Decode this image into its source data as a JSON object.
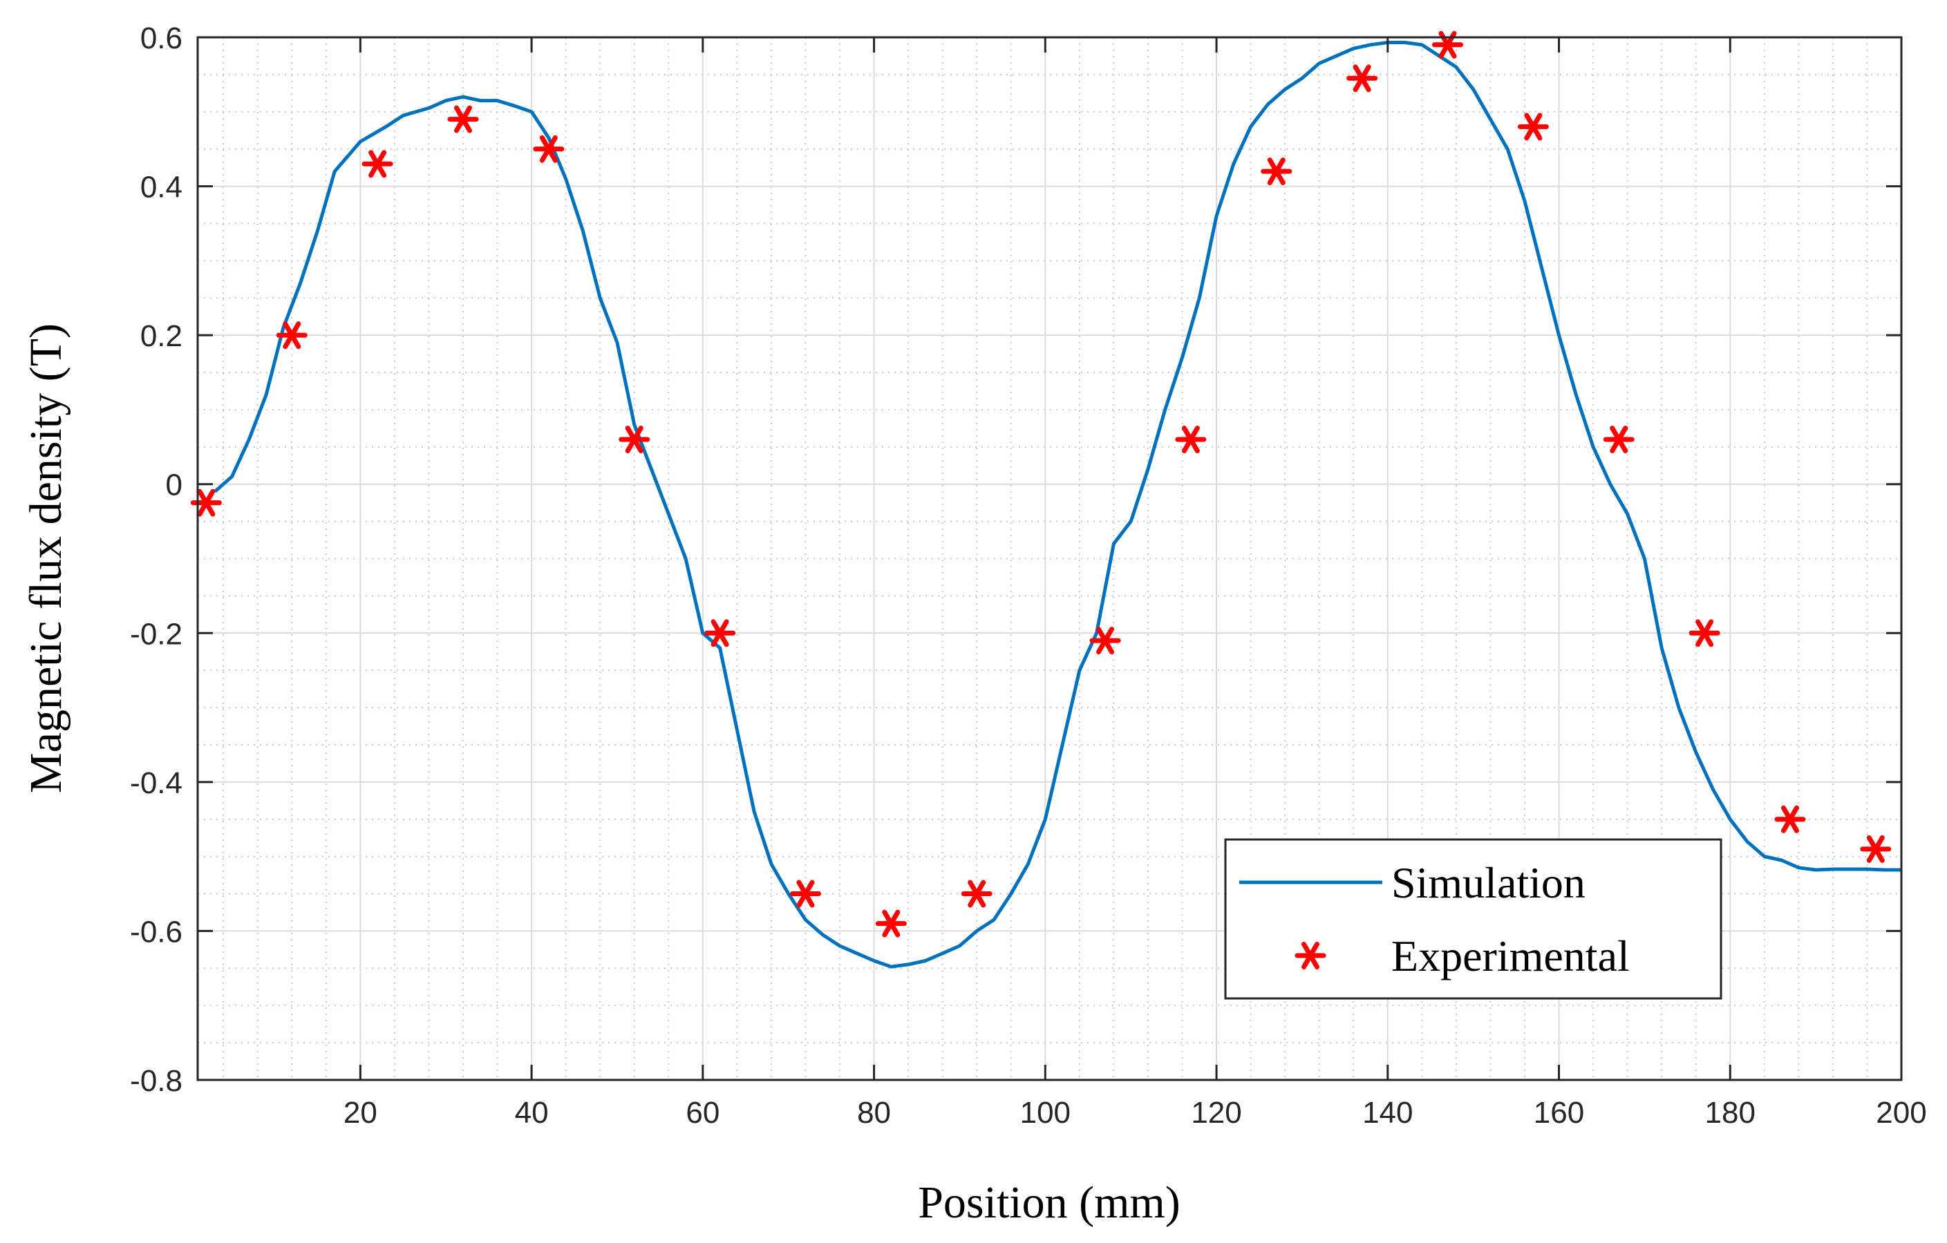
{
  "chart_data": {
    "type": "line",
    "title": "",
    "xlabel": "Position (mm)",
    "ylabel": "Magnetic flux density (T)",
    "xlim": [
      1,
      200
    ],
    "ylim": [
      -0.8,
      0.6
    ],
    "xticks": [
      20,
      40,
      60,
      80,
      100,
      120,
      140,
      160,
      180,
      200
    ],
    "xtick_labels": [
      "20",
      "40",
      "60",
      "80",
      "100",
      "120",
      "140",
      "160",
      "180",
      "200"
    ],
    "yticks": [
      -0.8,
      -0.6,
      -0.4,
      -0.2,
      0,
      0.2,
      0.4,
      0.6
    ],
    "ytick_labels": [
      "-0.8",
      "-0.6",
      "-0.4",
      "-0.2",
      "0",
      "0.2",
      "0.4",
      "0.6"
    ],
    "grid": true,
    "minor_grid": true,
    "legend_position": "bottom-right",
    "series": [
      {
        "name": "Simulation",
        "kind": "line",
        "color": "#0072BD",
        "x": [
          3,
          5,
          7,
          9,
          11,
          13,
          15,
          17,
          20,
          23,
          25,
          28,
          30,
          32,
          34,
          36,
          38,
          40,
          42,
          44,
          46,
          48,
          50,
          52,
          54,
          56,
          58,
          60,
          62,
          64,
          66,
          68,
          70,
          72,
          74,
          76,
          78,
          80,
          82,
          84,
          86,
          88,
          90,
          92,
          94,
          96,
          98,
          100,
          102,
          104,
          106,
          108,
          110,
          112,
          114,
          116,
          118,
          120,
          122,
          124,
          126,
          128,
          130,
          132,
          134,
          136,
          138,
          140,
          142,
          144,
          146,
          148,
          150,
          152,
          154,
          156,
          158,
          160,
          162,
          164,
          166,
          168,
          170,
          172,
          174,
          176,
          178,
          180,
          182,
          184,
          186,
          188,
          190,
          192,
          194,
          196,
          198,
          200
        ],
        "y": [
          -0.01,
          0.01,
          0.06,
          0.12,
          0.21,
          0.27,
          0.34,
          0.42,
          0.46,
          0.48,
          0.495,
          0.505,
          0.515,
          0.52,
          0.515,
          0.515,
          0.508,
          0.5,
          0.465,
          0.41,
          0.34,
          0.25,
          0.19,
          0.08,
          0.02,
          -0.04,
          -0.1,
          -0.2,
          -0.22,
          -0.33,
          -0.44,
          -0.51,
          -0.55,
          -0.585,
          -0.605,
          -0.62,
          -0.63,
          -0.64,
          -0.648,
          -0.645,
          -0.64,
          -0.63,
          -0.62,
          -0.6,
          -0.585,
          -0.55,
          -0.51,
          -0.45,
          -0.35,
          -0.25,
          -0.2,
          -0.08,
          -0.05,
          0.02,
          0.1,
          0.17,
          0.25,
          0.36,
          0.43,
          0.48,
          0.51,
          0.53,
          0.545,
          0.565,
          0.575,
          0.585,
          0.59,
          0.593,
          0.593,
          0.59,
          0.575,
          0.56,
          0.53,
          0.49,
          0.45,
          0.38,
          0.29,
          0.2,
          0.12,
          0.05,
          0.0,
          -0.04,
          -0.1,
          -0.22,
          -0.3,
          -0.36,
          -0.41,
          -0.45,
          -0.48,
          -0.5,
          -0.505,
          -0.515,
          -0.518,
          -0.517,
          -0.517,
          -0.517,
          -0.518,
          -0.518
        ]
      },
      {
        "name": "Experimental",
        "kind": "scatter",
        "marker": "asterisk",
        "color": "#FF0000",
        "x": [
          2,
          12,
          22,
          32,
          42,
          52,
          62,
          72,
          82,
          92,
          107,
          117,
          127,
          137,
          147,
          157,
          167,
          177,
          187,
          197
        ],
        "y": [
          -0.025,
          0.2,
          0.43,
          0.49,
          0.45,
          0.06,
          -0.2,
          -0.55,
          -0.59,
          -0.55,
          -0.21,
          0.06,
          0.42,
          0.545,
          0.59,
          0.48,
          0.06,
          -0.2,
          -0.45,
          -0.49
        ]
      }
    ]
  }
}
